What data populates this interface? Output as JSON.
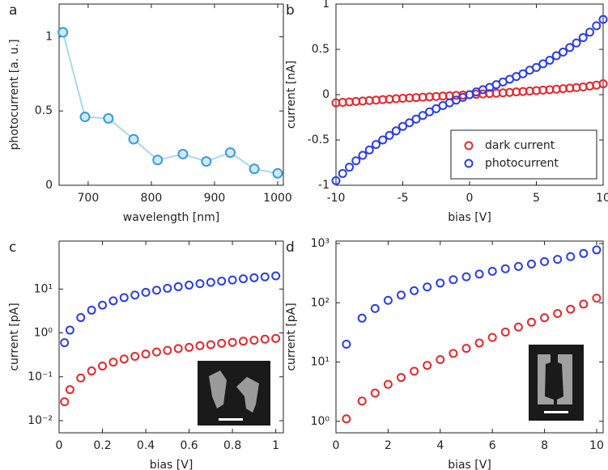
{
  "chart_data": [
    {
      "type": "line",
      "label": "a",
      "xlabel": "wavelength [nm]",
      "ylabel": "photocurrent [a. u.]",
      "x": [
        660,
        695,
        732,
        772,
        810,
        850,
        887,
        925,
        963,
        1000
      ],
      "values": [
        1.03,
        0.46,
        0.45,
        0.31,
        0.17,
        0.21,
        0.16,
        0.22,
        0.11,
        0.08
      ],
      "color": "#3a9ad9",
      "line_color": "#a8d8f0",
      "xlim": [
        654,
        1009
      ],
      "xticks": [
        700,
        800,
        900,
        1000
      ],
      "ylim": [
        0,
        1.22
      ],
      "yticks": [
        0,
        0.5,
        1
      ]
    },
    {
      "type": "scatter",
      "label": "b",
      "xlabel": "bias [V]",
      "ylabel": "current [nA]",
      "x": [
        -10,
        -9.5,
        -9,
        -8.5,
        -8,
        -7.5,
        -7,
        -6.5,
        -6,
        -5.5,
        -5,
        -4.5,
        -4,
        -3.5,
        -3,
        -2.5,
        -2,
        -1.5,
        -1,
        -0.5,
        0,
        0.5,
        1,
        1.5,
        2,
        2.5,
        3,
        3.5,
        4,
        4.5,
        5,
        5.5,
        6,
        6.5,
        7,
        7.5,
        8,
        8.5,
        9,
        9.5,
        10
      ],
      "series": [
        {
          "name": "dark current",
          "color": "#e8262b",
          "values": [
            -0.09,
            -0.085,
            -0.08,
            -0.075,
            -0.07,
            -0.065,
            -0.06,
            -0.055,
            -0.05,
            -0.045,
            -0.04,
            -0.036,
            -0.032,
            -0.028,
            -0.024,
            -0.02,
            -0.016,
            -0.012,
            -0.008,
            -0.004,
            0,
            0.004,
            0.008,
            0.012,
            0.016,
            0.02,
            0.025,
            0.03,
            0.035,
            0.04,
            0.045,
            0.05,
            0.055,
            0.06,
            0.066,
            0.072,
            0.078,
            0.085,
            0.095,
            0.105,
            0.12
          ]
        },
        {
          "name": "photocurrent",
          "color": "#2b3ee8",
          "values": [
            -0.95,
            -0.87,
            -0.8,
            -0.73,
            -0.67,
            -0.61,
            -0.55,
            -0.5,
            -0.45,
            -0.4,
            -0.35,
            -0.31,
            -0.27,
            -0.23,
            -0.19,
            -0.155,
            -0.12,
            -0.09,
            -0.06,
            -0.03,
            0,
            0.03,
            0.055,
            0.08,
            0.11,
            0.14,
            0.17,
            0.2,
            0.23,
            0.27,
            0.3,
            0.34,
            0.38,
            0.43,
            0.47,
            0.52,
            0.57,
            0.63,
            0.69,
            0.76,
            0.83
          ]
        }
      ],
      "xlim": [
        -10,
        10
      ],
      "xticks": [
        -10,
        -5,
        0,
        5,
        10
      ],
      "ylim": [
        -1,
        1
      ],
      "yticks": [
        -1,
        -0.5,
        0,
        0.5,
        1
      ],
      "legend": "lower right"
    },
    {
      "type": "scatter",
      "label": "c",
      "xlabel": "bias [V]",
      "ylabel": "current [pA]",
      "log_y": true,
      "x": [
        0.025,
        0.05,
        0.1,
        0.15,
        0.2,
        0.25,
        0.3,
        0.35,
        0.4,
        0.45,
        0.5,
        0.55,
        0.6,
        0.65,
        0.7,
        0.75,
        0.8,
        0.85,
        0.9,
        0.95,
        1
      ],
      "series": [
        {
          "color": "#e8262b",
          "values": [
            0.027,
            0.051,
            0.094,
            0.136,
            0.176,
            0.216,
            0.255,
            0.293,
            0.33,
            0.367,
            0.4,
            0.44,
            0.47,
            0.51,
            0.54,
            0.58,
            0.61,
            0.65,
            0.68,
            0.72,
            0.75
          ]
        },
        {
          "color": "#2b3ee8",
          "values": [
            0.6,
            1.16,
            2.24,
            3.3,
            4.3,
            5.4,
            6.4,
            7.3,
            8.4,
            9.4,
            10.4,
            11.3,
            12.3,
            13.3,
            14.2,
            15.2,
            16.1,
            17.1,
            18.1,
            19,
            20
          ]
        }
      ],
      "xlim": [
        0,
        1.035
      ],
      "xticks": [
        0,
        0.2,
        0.4,
        0.6,
        0.8,
        1
      ],
      "ylim": [
        0.0053,
        124
      ],
      "yticks": [
        {
          "value": 0.01,
          "label": "10⁻²"
        },
        {
          "value": 0.1,
          "label": "10⁻¹"
        },
        {
          "value": 1,
          "label": "10⁰"
        },
        {
          "value": 10,
          "label": "10¹"
        }
      ]
    },
    {
      "type": "scatter",
      "label": "d",
      "xlabel": "bias [V]",
      "ylabel": "current [pA]",
      "log_y": true,
      "x": [
        0.4,
        1,
        1.5,
        2,
        2.5,
        3,
        3.5,
        4,
        4.5,
        5,
        5.5,
        6,
        6.5,
        7,
        7.5,
        8,
        8.5,
        9,
        9.5,
        10
      ],
      "series": [
        {
          "color": "#e8262b",
          "values": [
            1.1,
            2.2,
            3,
            4.2,
            5.5,
            7,
            8.8,
            11,
            14,
            17,
            21,
            26,
            32,
            39,
            47,
            56,
            66,
            78,
            95,
            120
          ]
        },
        {
          "color": "#2b3ee8",
          "values": [
            20,
            55,
            80,
            110,
            135,
            160,
            185,
            215,
            245,
            275,
            305,
            340,
            375,
            410,
            450,
            495,
            540,
            600,
            680,
            780
          ]
        }
      ],
      "xlim": [
        0,
        10.25
      ],
      "xticks": [
        0,
        2,
        4,
        6,
        8,
        10
      ],
      "ylim": [
        0.64,
        1100
      ],
      "yticks": [
        {
          "value": 1,
          "label": "10⁰"
        },
        {
          "value": 10,
          "label": "10¹"
        },
        {
          "value": 100,
          "label": "10²"
        },
        {
          "value": 1000,
          "label": "10³"
        }
      ]
    }
  ]
}
